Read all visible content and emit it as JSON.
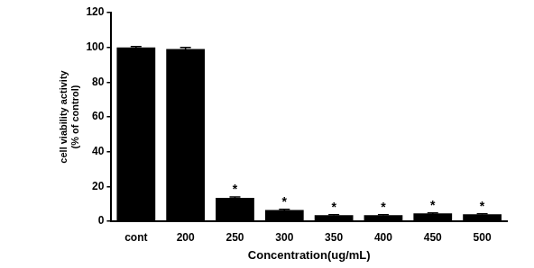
{
  "chart_data": {
    "type": "bar",
    "x_label": "Concentration(ug/mL)",
    "y_label": [
      "cell viability activity",
      "(% of control)"
    ],
    "categories": [
      "cont",
      "200",
      "250",
      "300",
      "350",
      "400",
      "450",
      "500"
    ],
    "values": [
      100,
      99,
      13.5,
      6.5,
      3.5,
      3.5,
      4.5,
      4
    ],
    "errors": [
      0.5,
      1,
      0.5,
      0.3,
      0.3,
      0.3,
      0.3,
      0.3
    ],
    "color": "#000000",
    "ylim": [
      0,
      120
    ],
    "yticks": [
      0,
      20,
      40,
      60,
      80,
      100,
      120
    ],
    "grid": false,
    "annotations": [
      {
        "category": "250",
        "text": "*"
      },
      {
        "category": "300",
        "text": "*"
      },
      {
        "category": "350",
        "text": "*"
      },
      {
        "category": "400",
        "text": "*"
      },
      {
        "category": "450",
        "text": "*"
      },
      {
        "category": "500",
        "text": "*"
      }
    ]
  }
}
